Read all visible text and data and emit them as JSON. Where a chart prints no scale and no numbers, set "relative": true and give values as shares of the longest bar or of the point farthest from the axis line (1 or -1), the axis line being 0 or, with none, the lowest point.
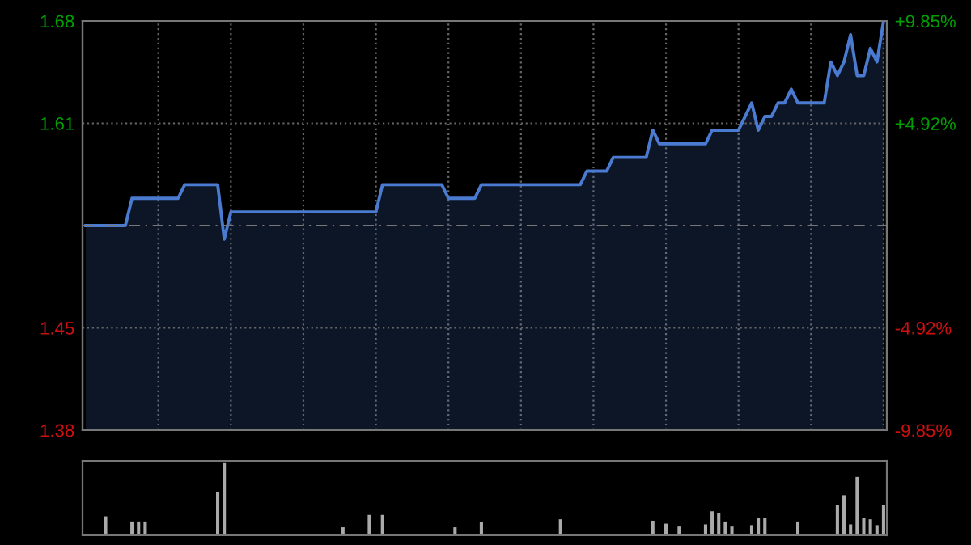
{
  "chart_data": [
    {
      "type": "area",
      "categories": [
        null,
        null,
        null,
        null,
        null,
        null,
        null,
        null,
        null,
        null,
        null,
        null,
        null,
        null,
        null,
        null,
        null,
        null,
        null,
        null,
        null,
        null,
        null,
        null,
        null,
        null,
        null,
        null,
        null,
        null,
        null,
        null,
        null,
        null,
        null,
        null,
        null,
        null,
        null,
        null,
        null,
        null,
        null,
        null,
        null,
        null,
        null,
        null,
        null,
        null,
        null,
        null,
        null,
        null,
        null,
        null,
        null,
        null,
        null,
        null,
        null,
        null,
        null,
        null,
        null,
        null,
        null,
        null,
        null,
        null,
        null,
        null,
        null,
        null,
        null,
        null,
        null,
        null,
        null,
        null,
        null,
        null,
        null,
        null,
        null,
        null,
        null,
        null,
        null,
        null,
        null,
        null,
        null,
        null,
        null,
        null,
        null,
        null,
        null,
        null,
        null,
        null,
        null,
        null,
        null,
        null,
        null,
        null,
        null,
        null,
        null,
        null,
        null,
        null,
        null,
        null,
        null,
        null,
        null,
        null,
        null,
        null
      ],
      "series": [
        {
          "color": "#4a7bd0",
          "values": [
            1.53,
            1.53,
            1.53,
            1.53,
            1.53,
            1.53,
            1.53,
            1.55,
            1.55,
            1.55,
            1.55,
            1.55,
            1.55,
            1.55,
            1.55,
            1.56,
            1.56,
            1.56,
            1.56,
            1.56,
            1.56,
            1.52,
            1.54,
            1.54,
            1.54,
            1.54,
            1.54,
            1.54,
            1.54,
            1.54,
            1.54,
            1.54,
            1.54,
            1.54,
            1.54,
            1.54,
            1.54,
            1.54,
            1.54,
            1.54,
            1.54,
            1.54,
            1.54,
            1.54,
            1.54,
            1.56,
            1.56,
            1.56,
            1.56,
            1.56,
            1.56,
            1.56,
            1.56,
            1.56,
            1.56,
            1.55,
            1.55,
            1.55,
            1.55,
            1.55,
            1.56,
            1.56,
            1.56,
            1.56,
            1.56,
            1.56,
            1.56,
            1.56,
            1.56,
            1.56,
            1.56,
            1.56,
            1.56,
            1.56,
            1.56,
            1.56,
            1.57,
            1.57,
            1.57,
            1.57,
            1.58,
            1.58,
            1.58,
            1.58,
            1.58,
            1.58,
            1.6,
            1.59,
            1.59,
            1.59,
            1.59,
            1.59,
            1.59,
            1.59,
            1.59,
            1.6,
            1.6,
            1.6,
            1.6,
            1.6,
            1.61,
            1.62,
            1.6,
            1.61,
            1.61,
            1.62,
            1.62,
            1.63,
            1.62,
            1.62,
            1.62,
            1.62,
            1.62,
            1.65,
            1.64,
            1.65,
            1.67,
            1.64,
            1.64,
            1.66,
            1.65,
            1.68
          ]
        }
      ],
      "ylim": [
        1.38,
        1.68
      ],
      "yticks": [
        {
          "value": 1.38,
          "label": "1.38"
        },
        {
          "value": 1.455,
          "label": "1.45"
        },
        {
          "value": 1.605,
          "label": "1.61"
        },
        {
          "value": 1.68,
          "label": "1.68"
        }
      ],
      "y2lim": [
        -9.85,
        9.85
      ],
      "y2ticks": [
        {
          "value": -9.85,
          "label": "-9.85%"
        },
        {
          "value": -4.92,
          "label": "-4.92%"
        },
        {
          "value": 4.92,
          "label": "+4.92%"
        },
        {
          "value": 9.85,
          "label": "+9.85%"
        }
      ],
      "ref_lines": [
        {
          "axis": "y",
          "value": 1.53,
          "label": null,
          "color": "#777777",
          "line_style": "dashed"
        }
      ],
      "grid": true
    },
    {
      "type": "bar",
      "relative": true,
      "categories": [
        null,
        null,
        null,
        null,
        null,
        null,
        null,
        null,
        null,
        null,
        null,
        null,
        null,
        null,
        null,
        null,
        null,
        null,
        null,
        null,
        null,
        null,
        null,
        null,
        null,
        null,
        null,
        null,
        null,
        null,
        null,
        null,
        null,
        null,
        null,
        null,
        null,
        null,
        null,
        null,
        null,
        null,
        null,
        null,
        null,
        null,
        null,
        null,
        null,
        null,
        null,
        null,
        null,
        null,
        null,
        null,
        null,
        null,
        null,
        null,
        null,
        null,
        null,
        null,
        null,
        null,
        null,
        null,
        null,
        null,
        null,
        null,
        null,
        null,
        null,
        null,
        null,
        null,
        null,
        null,
        null,
        null,
        null,
        null,
        null,
        null,
        null,
        null,
        null,
        null,
        null,
        null,
        null,
        null,
        null,
        null,
        null,
        null,
        null,
        null,
        null,
        null,
        null,
        null,
        null,
        null,
        null,
        null,
        null,
        null,
        null,
        null,
        null,
        null,
        null,
        null,
        null,
        null,
        null,
        null,
        null,
        null
      ],
      "series": [
        {
          "color": "#aaaaaa",
          "values": [
            0,
            0,
            0,
            0.26,
            0,
            0,
            0,
            0.19,
            0.19,
            0.19,
            0,
            0,
            0,
            0,
            0,
            0,
            0,
            0,
            0,
            0,
            0.59,
            1,
            0,
            0,
            0,
            0,
            0,
            0,
            0,
            0,
            0,
            0,
            0,
            0,
            0,
            0,
            0,
            0,
            0,
            0.11,
            0,
            0,
            0,
            0.28,
            0,
            0.28,
            0,
            0,
            0,
            0,
            0,
            0,
            0,
            0,
            0,
            0,
            0.11,
            0,
            0,
            0,
            0.18,
            0,
            0,
            0,
            0,
            0,
            0,
            0,
            0,
            0,
            0,
            0,
            0.22,
            0,
            0,
            0,
            0,
            0,
            0,
            0,
            0,
            0,
            0,
            0,
            0,
            0,
            0.2,
            0,
            0.16,
            0,
            0.12,
            0,
            0,
            0,
            0.15,
            0.33,
            0.3,
            0.19,
            0.12,
            0,
            0,
            0.14,
            0.24,
            0.24,
            0,
            0,
            0,
            0,
            0.19,
            0,
            0,
            0,
            0,
            0,
            0.42,
            0.55,
            0.15,
            0.8,
            0.24,
            0.22,
            0.14,
            0.41
          ]
        }
      ]
    }
  ]
}
